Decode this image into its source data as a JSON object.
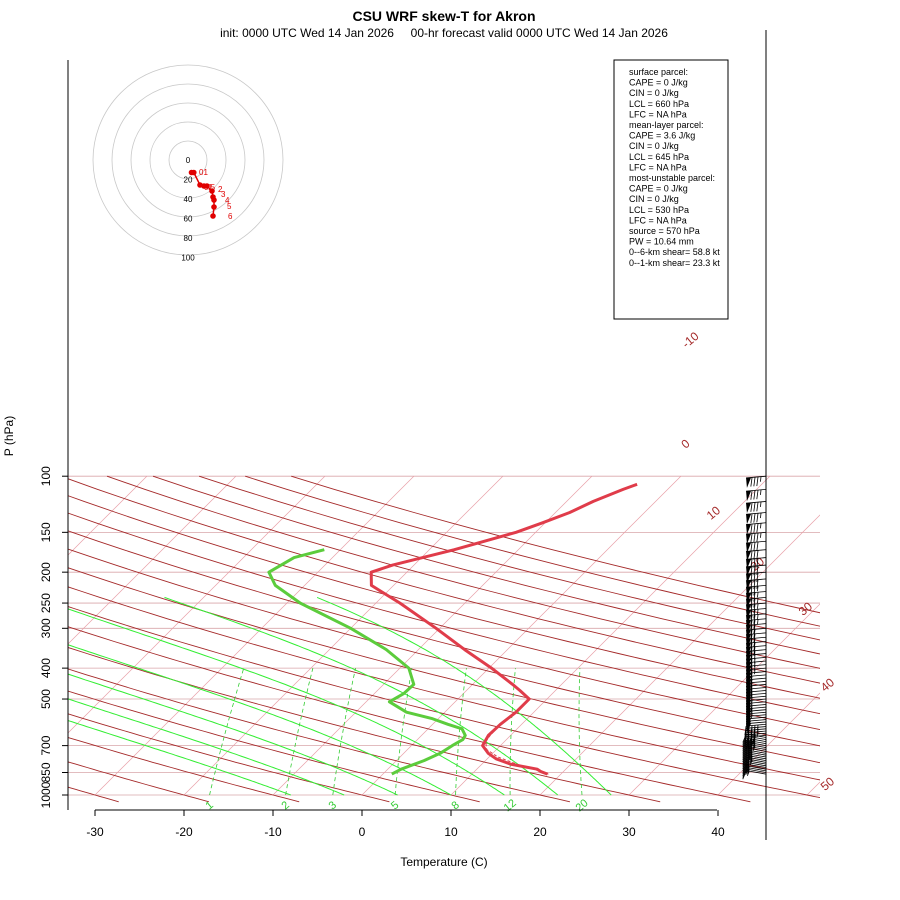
{
  "title": "CSU WRF skew-T for Akron",
  "subtitle": "init: 0000 UTC Wed 14 Jan 2026     00-hr forecast valid 0000 UTC Wed 14 Jan 2026",
  "info_box": {
    "lines": [
      "surface parcel:",
      "CAPE = 0 J/kg",
      "CIN = 0 J/kg",
      "LCL = 660 hPa",
      "LFC = NA hPa",
      "",
      "mean-layer parcel:",
      "CAPE = 3.6 J/kg",
      "CIN = 0 J/kg",
      "LCL = 645 hPa",
      "LFC = NA hPa",
      "",
      "most-unstable parcel:",
      "CAPE = 0 J/kg",
      "CIN = 0 J/kg",
      "LCL = 530 hPa",
      "LFC = NA hPa",
      "source = 570 hPa",
      "",
      "PW =  10.64 mm",
      "",
      "0--6-km shear= 58.8 kt",
      "0--1-km shear= 23.3 kt"
    ]
  },
  "colors": {
    "temperature": "#e03c4a",
    "dewpoint": "#5ccc3c",
    "isotherm": "#e8a0a8",
    "dry_adiabat": "#a52a2a",
    "moist_adiabat": "#33ee33",
    "mixing_ratio": "#33cc33",
    "hodograph": "#e00000",
    "grid": "#c8c8c8"
  },
  "chart_data": {
    "type": "line",
    "subtype": "skew-T log-P diagram",
    "xlabel": "Temperature (C)",
    "ylabel": "P (hPa)",
    "xlim": [
      -33,
      51
    ],
    "ylim": [
      1000,
      100
    ],
    "y_scale": "log",
    "x_ticks": [
      -30,
      -20,
      -10,
      0,
      10,
      20,
      30,
      40
    ],
    "y_ticks": [
      100,
      150,
      200,
      250,
      300,
      400,
      500,
      700,
      850,
      1000
    ],
    "series": [
      {
        "name": "temperature",
        "points": [
          {
            "p": 860,
            "t": 18.5
          },
          {
            "p": 845,
            "t": 17.5
          },
          {
            "p": 830,
            "t": 16.8
          },
          {
            "p": 800,
            "t": 13.2
          },
          {
            "p": 770,
            "t": 11.0
          },
          {
            "p": 740,
            "t": 9.5
          },
          {
            "p": 700,
            "t": 8.0
          },
          {
            "p": 650,
            "t": 7.5
          },
          {
            "p": 600,
            "t": 7.6
          },
          {
            "p": 550,
            "t": 8.0
          },
          {
            "p": 500,
            "t": 8.0
          },
          {
            "p": 470,
            "t": 6.0
          },
          {
            "p": 450,
            "t": 4.5
          },
          {
            "p": 400,
            "t": 0.3
          },
          {
            "p": 350,
            "t": -4.8
          },
          {
            "p": 300,
            "t": -10.4
          },
          {
            "p": 250,
            "t": -17.3
          },
          {
            "p": 220,
            "t": -22.5
          },
          {
            "p": 200,
            "t": -24.0
          },
          {
            "p": 190,
            "t": -22.4
          },
          {
            "p": 170,
            "t": -17.2
          },
          {
            "p": 150,
            "t": -12.2
          },
          {
            "p": 140,
            "t": -10.3
          },
          {
            "p": 130,
            "t": -8.4
          },
          {
            "p": 120,
            "t": -7.0
          },
          {
            "p": 110,
            "t": -5.0
          },
          {
            "p": 106,
            "t": -4.0
          }
        ]
      },
      {
        "name": "dewpoint",
        "points": [
          {
            "p": 860,
            "t": 1.0
          },
          {
            "p": 830,
            "t": 1.5
          },
          {
            "p": 780,
            "t": 3.1
          },
          {
            "p": 740,
            "t": 4.1
          },
          {
            "p": 700,
            "t": 4.6
          },
          {
            "p": 670,
            "t": 5.1
          },
          {
            "p": 650,
            "t": 4.9
          },
          {
            "p": 620,
            "t": 3.8
          },
          {
            "p": 600,
            "t": 1.7
          },
          {
            "p": 575,
            "t": -0.8
          },
          {
            "p": 550,
            "t": -4.3
          },
          {
            "p": 510,
            "t": -7.4
          },
          {
            "p": 480,
            "t": -6.7
          },
          {
            "p": 450,
            "t": -6.6
          },
          {
            "p": 420,
            "t": -8.0
          },
          {
            "p": 400,
            "t": -9.0
          },
          {
            "p": 350,
            "t": -13.6
          },
          {
            "p": 300,
            "t": -20.0
          },
          {
            "p": 250,
            "t": -28.5
          },
          {
            "p": 220,
            "t": -33.3
          },
          {
            "p": 200,
            "t": -35.5
          },
          {
            "p": 180,
            "t": -34.3
          },
          {
            "p": 170,
            "t": -31.8
          }
        ]
      },
      {
        "name": "parcel",
        "style": "dashed",
        "points": [
          {
            "p": 860,
            "t": 18.6
          },
          {
            "p": 830,
            "t": 16.4
          },
          {
            "p": 800,
            "t": 13.9
          },
          {
            "p": 760,
            "t": 11.0
          },
          {
            "p": 720,
            "t": 8.9
          },
          {
            "p": 680,
            "t": 7.9
          },
          {
            "p": 650,
            "t": 7.7
          },
          {
            "p": 600,
            "t": 7.6
          }
        ]
      }
    ],
    "mixing_ratio_labels": [
      "1",
      "2",
      "3",
      "5",
      "8",
      "12",
      "20"
    ],
    "isotherm_labels": [
      "-10",
      "0",
      "10",
      "20",
      "30",
      "40",
      "50"
    ],
    "wind_barb_column": true,
    "hodograph": {
      "ring_labels": [
        "0",
        "20",
        "40",
        "60",
        "80",
        "100"
      ],
      "height_labels": [
        "01",
        "0.5",
        "1",
        "2",
        "3",
        "4",
        "5",
        "6"
      ],
      "points": [
        {
          "u": 3.5,
          "v": -12.5
        },
        {
          "u": 5.8,
          "v": -12.5
        },
        {
          "u": 12,
          "v": -25
        },
        {
          "u": 16,
          "v": -26
        },
        {
          "u": 19,
          "v": -26
        },
        {
          "u": 24,
          "v": -31
        },
        {
          "u": 25,
          "v": -37
        },
        {
          "u": 26,
          "v": -40
        },
        {
          "u": 26,
          "v": -47
        },
        {
          "u": 25,
          "v": -56
        }
      ]
    }
  }
}
